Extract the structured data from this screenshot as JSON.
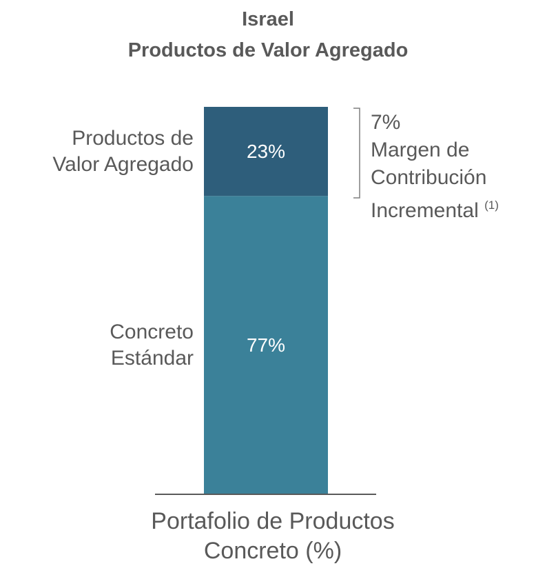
{
  "chart_data": {
    "type": "stacked_bar",
    "title": "Israel",
    "subtitle": "Productos de Valor Agregado",
    "categories": [
      "Portafolio de Productos Concreto (%)"
    ],
    "series": [
      {
        "name": "Concreto Estándar",
        "color": "#3b8199",
        "values": [
          77
        ],
        "value_labels": [
          "77%"
        ]
      },
      {
        "name": "Productos de Valor Agregado",
        "color": "#2e5e7b",
        "values": [
          23
        ],
        "value_labels": [
          "23%"
        ]
      }
    ],
    "ylim": [
      0,
      100
    ],
    "annotation": {
      "value_label": "7%",
      "text": "Margen de Contribución Incremental",
      "note": "(1)"
    }
  }
}
